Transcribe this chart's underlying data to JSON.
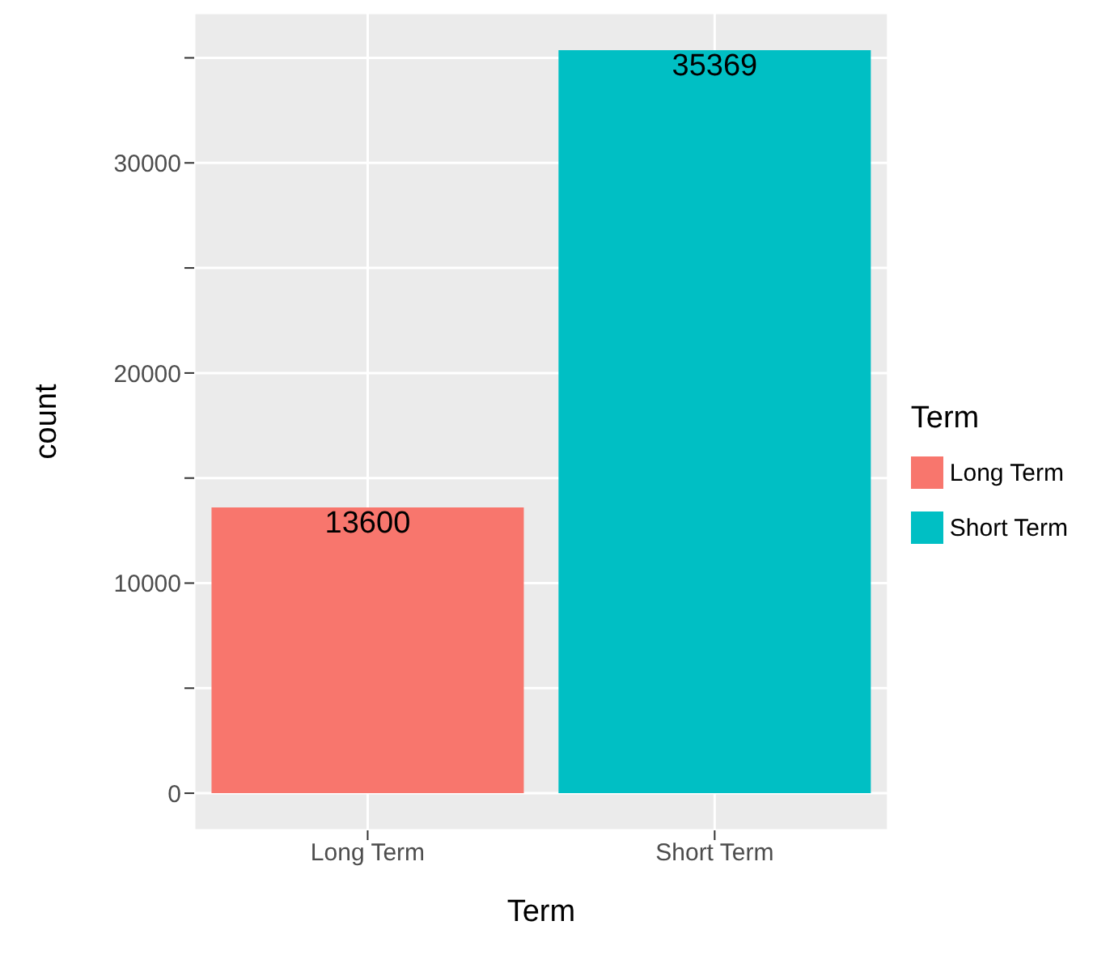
{
  "chart_data": {
    "type": "bar",
    "xlabel": "Term",
    "ylabel": "count",
    "legend_title": "Term",
    "categories": [
      "Long Term",
      "Short Term"
    ],
    "series": [
      {
        "name": "Long Term",
        "color": "#f8766d",
        "values": [
          13600,
          null
        ]
      },
      {
        "name": "Short Term",
        "color": "#00bfc4",
        "values": [
          null,
          35369
        ]
      }
    ],
    "stacked": true,
    "ylim": [
      -1768,
      37137
    ],
    "yticks": [
      0,
      {
        "value": 5000,
        "label": null
      },
      10000,
      {
        "value": 15000,
        "label": null
      },
      20000,
      {
        "value": 25000,
        "label": null
      },
      30000,
      {
        "value": 35000,
        "label": null
      }
    ],
    "grid": true,
    "legend": "right",
    "data_labels": true
  }
}
